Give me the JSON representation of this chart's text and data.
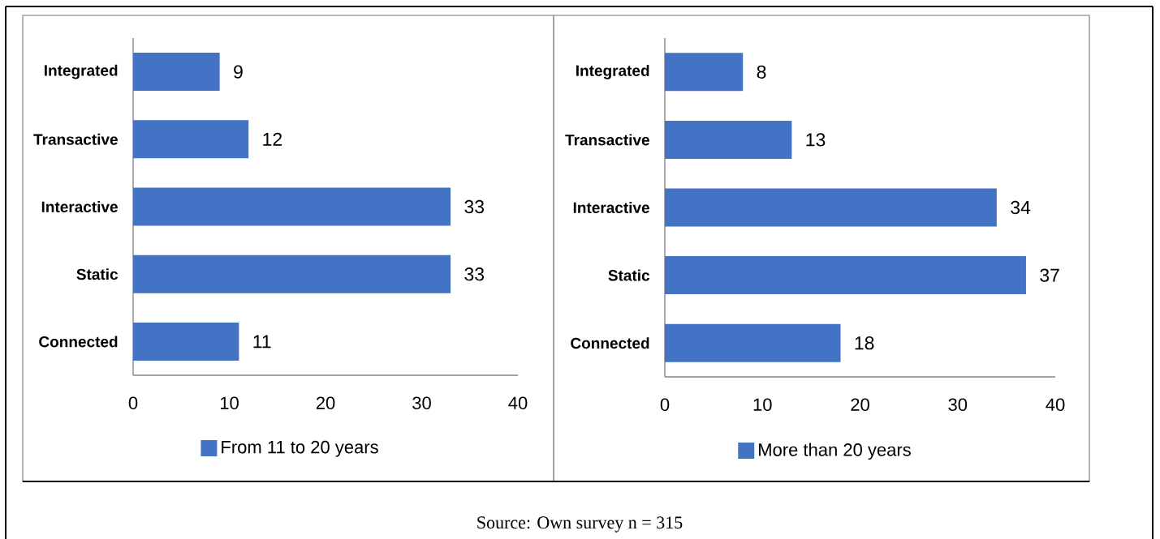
{
  "chart_data": [
    {
      "type": "bar",
      "orientation": "horizontal",
      "categories": [
        "Integrated",
        "Transactive",
        "Interactive",
        "Static",
        "Connected"
      ],
      "series": [
        {
          "name": "From 11 to 20 years",
          "color": "#4472c4",
          "values": [
            9,
            12,
            33,
            33,
            11
          ]
        }
      ],
      "xlim": [
        0,
        40
      ],
      "xticks": [
        0,
        10,
        20,
        30,
        40
      ],
      "data_labels": true,
      "legend": "bottom"
    },
    {
      "type": "bar",
      "orientation": "horizontal",
      "categories": [
        "Integrated",
        "Transactive",
        "Interactive",
        "Static",
        "Connected"
      ],
      "series": [
        {
          "name": "More than 20 years",
          "color": "#4472c4",
          "values": [
            8,
            13,
            34,
            37,
            18
          ]
        }
      ],
      "xlim": [
        0,
        40
      ],
      "xticks": [
        0,
        10,
        20,
        30,
        40
      ],
      "data_labels": true,
      "legend": "bottom",
      "annotations": [
        "Source: Own survey n = 315"
      ]
    }
  ]
}
